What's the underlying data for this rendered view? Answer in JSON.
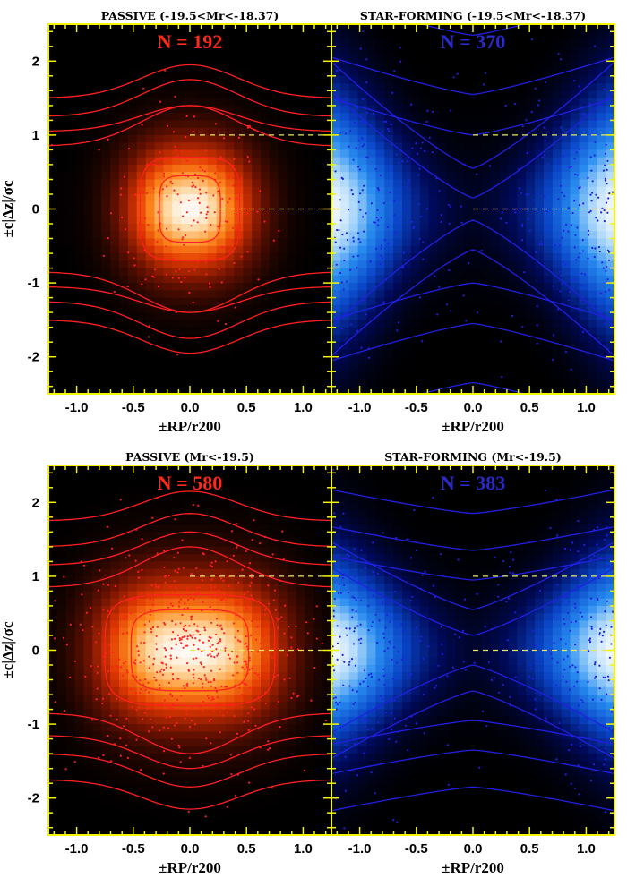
{
  "figure": {
    "ylabel": "±c|Δz|/σc",
    "xlabel": "±RP/r200",
    "colors": {
      "frame": "#f5f500",
      "passive": "#ff2020",
      "star_forming": "#2020e0",
      "reference_lines": "#e8e860"
    }
  },
  "chart_data": [
    {
      "type": "heatmap",
      "title": "PASSIVE (-19.5<Mr<-18.37)",
      "annotation": "N = 192",
      "population": "passive",
      "colormap": "black-red-orange-white",
      "N": 192,
      "xlim": [
        -1.25,
        1.25
      ],
      "ylim": [
        -2.5,
        2.5
      ],
      "xticks": [
        -1.0,
        -0.5,
        0.0,
        0.5,
        1.0
      ],
      "xtick_labels": [
        "-1.0",
        "-0.5",
        "0.0",
        "0.5",
        "1.0"
      ],
      "yticks": [
        -2,
        -1,
        0,
        1,
        2
      ],
      "ytick_labels": [
        "-2",
        "-1",
        "0",
        "1",
        "2"
      ],
      "density_peak": [
        0.0,
        0.0
      ],
      "contours": "nested closed contours centred on (0,0)",
      "reference_lines_y": [
        0,
        1
      ]
    },
    {
      "type": "heatmap",
      "title": "STAR-FORMING (-19.5<Mr<-18.37)",
      "annotation": "N = 370",
      "population": "star-forming",
      "colormap": "black-blue-white",
      "N": 370,
      "xlim": [
        -1.25,
        1.25
      ],
      "ylim": [
        -2.5,
        2.5
      ],
      "xticks": [
        -1.0,
        -0.5,
        0.0,
        0.5,
        1.0
      ],
      "xtick_labels": [
        "-1.0",
        "-0.5",
        "0.0",
        "0.5",
        "1.0"
      ],
      "yticks": [
        -2,
        -1,
        0,
        1,
        2
      ],
      "ytick_labels": [
        "-2",
        "-1",
        "0",
        "1",
        "2"
      ],
      "density_peak": [
        1.0,
        0.0
      ],
      "contours": "X-shaped contours with a deficit along x = 0",
      "reference_lines_y": [
        0,
        1
      ]
    },
    {
      "type": "heatmap",
      "title": "PASSIVE (Mr<-19.5)",
      "annotation": "N = 580",
      "population": "passive",
      "colormap": "black-red-orange-white",
      "N": 580,
      "xlim": [
        -1.25,
        1.25
      ],
      "ylim": [
        -2.5,
        2.5
      ],
      "xticks": [
        -1.0,
        -0.5,
        0.0,
        0.5,
        1.0
      ],
      "xtick_labels": [
        "-1.0",
        "-0.5",
        "0.0",
        "0.5",
        "1.0"
      ],
      "yticks": [
        -2,
        -1,
        0,
        1,
        2
      ],
      "ytick_labels": [
        "-2",
        "-1",
        "0",
        "1",
        "2"
      ],
      "density_peak": [
        0.0,
        0.0
      ],
      "contours": "nested closed contours centred on (0,0)",
      "reference_lines_y": [
        0,
        1
      ]
    },
    {
      "type": "heatmap",
      "title": "STAR-FORMING (Mr<-19.5)",
      "annotation": "N = 383",
      "population": "star-forming",
      "colormap": "black-blue-white",
      "N": 383,
      "xlim": [
        -1.25,
        1.25
      ],
      "ylim": [
        -2.5,
        2.5
      ],
      "xticks": [
        -1.0,
        -0.5,
        0.0,
        0.5,
        1.0
      ],
      "xtick_labels": [
        "-1.0",
        "-0.5",
        "0.0",
        "0.5",
        "1.0"
      ],
      "yticks": [
        -2,
        -1,
        0,
        1,
        2
      ],
      "ytick_labels": [
        "-2",
        "-1",
        "0",
        "1",
        "2"
      ],
      "density_peak": [
        1.0,
        0.0
      ],
      "contours": "contours with a deficit along x = 0",
      "reference_lines_y": [
        0,
        1
      ]
    }
  ]
}
